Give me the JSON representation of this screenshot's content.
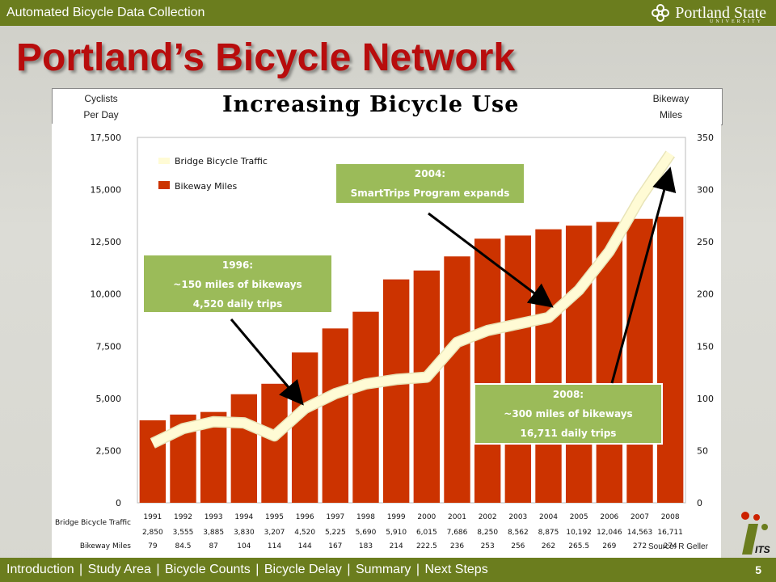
{
  "header": {
    "org_title": "Automated Bicycle Data Collection",
    "logo_name": "Portland State",
    "logo_sub": "UNIVERSITY"
  },
  "slide": {
    "title": "Portland’s Bicycle Network",
    "page_number": "5",
    "source": "Source: R Geller"
  },
  "chart_header": {
    "left_label_1": "Cyclists",
    "left_label_2": "Per Day",
    "title": "Increasing Bicycle Use",
    "right_label_1": "Bikeway",
    "right_label_2": "Miles"
  },
  "nav": {
    "items": [
      "Introduction",
      "Study Area",
      "Bicycle Counts",
      "Bicycle Delay",
      "Summary",
      "Next Steps"
    ],
    "active_index": 0
  },
  "callouts": {
    "c1996": {
      "line1": "1996:",
      "line2": "~150 miles of bikeways",
      "line3": "4,520 daily trips"
    },
    "c2004": {
      "line1": "2004:",
      "line2": "SmartTrips Program expands"
    },
    "c2008": {
      "line1": "2008:",
      "line2": "~300 miles of bikeways",
      "line3": "16,711 daily trips"
    }
  },
  "colors": {
    "bar": "#cc3300",
    "line": "#fffbd5",
    "band": "#6b7d1e",
    "title": "#b80d0d",
    "callout": "#9bbb59"
  },
  "chart_data": {
    "type": "bar",
    "categories": [
      "1991",
      "1992",
      "1993",
      "1994",
      "1995",
      "1996",
      "1997",
      "1998",
      "1999",
      "2000",
      "2001",
      "2002",
      "2003",
      "2004",
      "2005",
      "2006",
      "2007",
      "2008"
    ],
    "series": [
      {
        "name": "Bridge Bicycle Traffic",
        "type": "line",
        "axis": "left",
        "values": [
          2850,
          3555,
          3885,
          3830,
          3207,
          4520,
          5225,
          5690,
          5910,
          6015,
          7686,
          8250,
          8562,
          8875,
          10192,
          12046,
          14563,
          16711
        ],
        "labels": [
          "2,850",
          "3,555",
          "3,885",
          "3,830",
          "3,207",
          "4,520",
          "5,225",
          "5,690",
          "5,910",
          "6,015",
          "7,686",
          "8,250",
          "8,562",
          "8,875",
          "10,192",
          "12,046",
          "14,563",
          "16,711"
        ]
      },
      {
        "name": "Bikeway Miles",
        "type": "bar",
        "axis": "right",
        "values": [
          79,
          84.5,
          87,
          104,
          114,
          144,
          167,
          183,
          214,
          222.5,
          236,
          253,
          256,
          262,
          265.5,
          269,
          272,
          274
        ],
        "labels": [
          "79",
          "84.5",
          "87",
          "104",
          "114",
          "144",
          "167",
          "183",
          "214",
          "222.5",
          "236",
          "253",
          "256",
          "262",
          "265.5",
          "269",
          "272",
          "274"
        ]
      }
    ],
    "left_axis": {
      "ylim": [
        0,
        17500
      ],
      "ticks": [
        "0",
        "2,500",
        "5,000",
        "7,500",
        "10,000",
        "12,500",
        "15,000",
        "17,500"
      ],
      "tick_values": [
        0,
        2500,
        5000,
        7500,
        10000,
        12500,
        15000,
        17500
      ]
    },
    "right_axis": {
      "ylim": [
        0,
        350
      ],
      "ticks": [
        "0",
        "50",
        "100",
        "150",
        "200",
        "250",
        "300",
        "350"
      ],
      "tick_values": [
        0,
        50,
        100,
        150,
        200,
        250,
        300,
        350
      ]
    },
    "row_labels": {
      "line": "Bridge Bicycle Traffic",
      "bar": "Bikeway Miles"
    },
    "legend": "top-left"
  }
}
